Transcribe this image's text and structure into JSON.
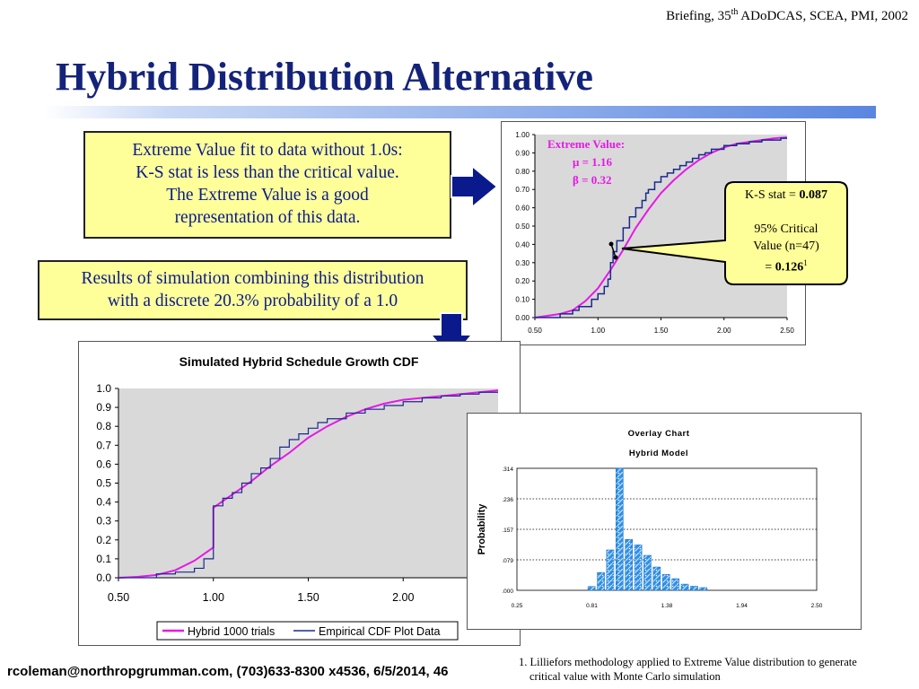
{
  "header": {
    "briefing_pre": "Briefing, 35",
    "briefing_sup": "th",
    "briefing_post": " ADoDCAS, SCEA, PMI, 2002"
  },
  "title": "Hybrid Distribution Alternative",
  "box1": {
    "lines": [
      "Extreme Value fit to data without 1.0s:",
      "K-S stat is less than the critical value.",
      "The Extreme Value is a good",
      "representation of this data."
    ]
  },
  "box2": {
    "lines": [
      "Results of simulation combining this distribution",
      "with a discrete 20.3% probability of a 1.0"
    ]
  },
  "extreme_label": {
    "title": "Extreme Value:",
    "mu": "μ = 1.16",
    "beta": "β = 0.32"
  },
  "callout": {
    "ks_prefix": "K-S stat = ",
    "ks_value": "0.087",
    "crit_line1": "95% Critical",
    "crit_line2": "Value (n=47)",
    "crit_prefix": "=  ",
    "crit_value": "0.126",
    "crit_sup": "1"
  },
  "footer": {
    "contact": "rcoleman@northropgrumman.com, (703)633-8300 x4536, 6/5/2014, 46"
  },
  "footnote": {
    "line1": "1. Lilliefors methodology applied to Extreme Value distribution to generate",
    "line2": "critical value with Monte Carlo simulation"
  },
  "colors": {
    "title": "#14237a",
    "box_fill": "#ffff99",
    "box_text": "#0a1a8c",
    "arrow": "#0a1a8c",
    "fit_curve": "#e619e6",
    "empirical": "#1a2a8c",
    "plot_bg": "#d9d9d9",
    "bars": "#2e8fe6"
  },
  "chart_data": [
    {
      "type": "line",
      "title": "",
      "xlabel": "",
      "ylabel": "",
      "xlim": [
        0.5,
        2.5
      ],
      "ylim": [
        0,
        1
      ],
      "xticks": [
        "0.50",
        "1.00",
        "1.50",
        "2.00",
        "2.50"
      ],
      "yticks": [
        "0.00",
        "0.10",
        "0.20",
        "0.30",
        "0.40",
        "0.50",
        "0.60",
        "0.70",
        "0.80",
        "0.90",
        "1.00"
      ],
      "grid": false,
      "series": [
        {
          "name": "",
          "kind": "curve",
          "x": [
            0.5,
            0.6,
            0.7,
            0.8,
            0.9,
            1.0,
            1.1,
            1.2,
            1.3,
            1.4,
            1.5,
            1.6,
            1.7,
            1.8,
            1.9,
            2.0,
            2.1,
            2.2,
            2.3,
            2.4,
            2.5
          ],
          "y": [
            0.0,
            0.01,
            0.02,
            0.04,
            0.09,
            0.16,
            0.26,
            0.37,
            0.49,
            0.59,
            0.68,
            0.75,
            0.81,
            0.86,
            0.9,
            0.93,
            0.95,
            0.96,
            0.97,
            0.98,
            0.985
          ]
        },
        {
          "name": "",
          "kind": "step",
          "x": [
            0.5,
            0.7,
            0.8,
            0.85,
            0.95,
            1.0,
            1.05,
            1.08,
            1.1,
            1.12,
            1.15,
            1.2,
            1.25,
            1.3,
            1.35,
            1.38,
            1.4,
            1.45,
            1.5,
            1.55,
            1.6,
            1.65,
            1.7,
            1.75,
            1.8,
            1.85,
            1.9,
            2.0,
            2.1,
            2.2,
            2.3,
            2.45,
            2.5
          ],
          "y": [
            0.0,
            0.02,
            0.04,
            0.06,
            0.1,
            0.13,
            0.17,
            0.21,
            0.3,
            0.36,
            0.42,
            0.49,
            0.55,
            0.6,
            0.64,
            0.68,
            0.7,
            0.74,
            0.77,
            0.79,
            0.81,
            0.83,
            0.85,
            0.87,
            0.89,
            0.9,
            0.92,
            0.94,
            0.95,
            0.96,
            0.97,
            0.98,
            0.98
          ]
        }
      ]
    },
    {
      "type": "line",
      "title": "Simulated Hybrid Schedule Growth CDF",
      "xlabel": "",
      "ylabel": "",
      "xlim": [
        0.5,
        2.5
      ],
      "ylim": [
        0,
        1
      ],
      "xticks": [
        "0.50",
        "1.00",
        "1.50",
        "2.00"
      ],
      "yticks": [
        "0.0",
        "0.1",
        "0.2",
        "0.3",
        "0.4",
        "0.5",
        "0.6",
        "0.7",
        "0.8",
        "0.9",
        "1.0"
      ],
      "legend": "bottom",
      "series": [
        {
          "name": "Hybrid 1000 trials",
          "kind": "curve",
          "x": [
            0.5,
            0.6,
            0.7,
            0.8,
            0.9,
            1.0,
            1.0,
            1.1,
            1.2,
            1.3,
            1.4,
            1.5,
            1.6,
            1.7,
            1.8,
            1.9,
            2.0,
            2.1,
            2.2,
            2.3,
            2.4,
            2.5
          ],
          "y": [
            0.0,
            0.005,
            0.015,
            0.04,
            0.09,
            0.16,
            0.37,
            0.44,
            0.51,
            0.59,
            0.66,
            0.74,
            0.8,
            0.85,
            0.89,
            0.92,
            0.94,
            0.95,
            0.96,
            0.97,
            0.98,
            0.99
          ]
        },
        {
          "name": "Empirical CDF Plot Data",
          "kind": "step",
          "x": [
            0.5,
            0.7,
            0.8,
            0.9,
            0.95,
            1.0,
            1.0,
            1.05,
            1.1,
            1.15,
            1.2,
            1.25,
            1.3,
            1.35,
            1.4,
            1.45,
            1.5,
            1.55,
            1.6,
            1.7,
            1.8,
            1.9,
            2.0,
            2.1,
            2.2,
            2.3,
            2.4,
            2.5
          ],
          "y": [
            0.0,
            0.02,
            0.03,
            0.05,
            0.1,
            0.14,
            0.38,
            0.42,
            0.45,
            0.5,
            0.55,
            0.58,
            0.63,
            0.69,
            0.73,
            0.76,
            0.79,
            0.82,
            0.84,
            0.87,
            0.89,
            0.91,
            0.93,
            0.95,
            0.96,
            0.97,
            0.98,
            0.98
          ]
        }
      ]
    },
    {
      "type": "bar",
      "title": "Overlay Chart",
      "subtitle": "Hybrid Model",
      "xlabel": "",
      "ylabel": "Probability",
      "xlim": [
        0.25,
        2.5
      ],
      "ylim": [
        0,
        0.314
      ],
      "xticks": [
        "0.25",
        "0.81",
        "1.38",
        "1.94",
        "2.50"
      ],
      "yticks": [
        ".000",
        ".079",
        ".157",
        ".236",
        ".314"
      ],
      "bin_centers": [
        0.81,
        0.88,
        0.95,
        1.02,
        1.09,
        1.16,
        1.23,
        1.3,
        1.37,
        1.44,
        1.51,
        1.58,
        1.65
      ],
      "values": [
        0.01,
        0.046,
        0.104,
        0.314,
        0.131,
        0.117,
        0.09,
        0.06,
        0.041,
        0.03,
        0.016,
        0.011,
        0.007
      ]
    }
  ]
}
